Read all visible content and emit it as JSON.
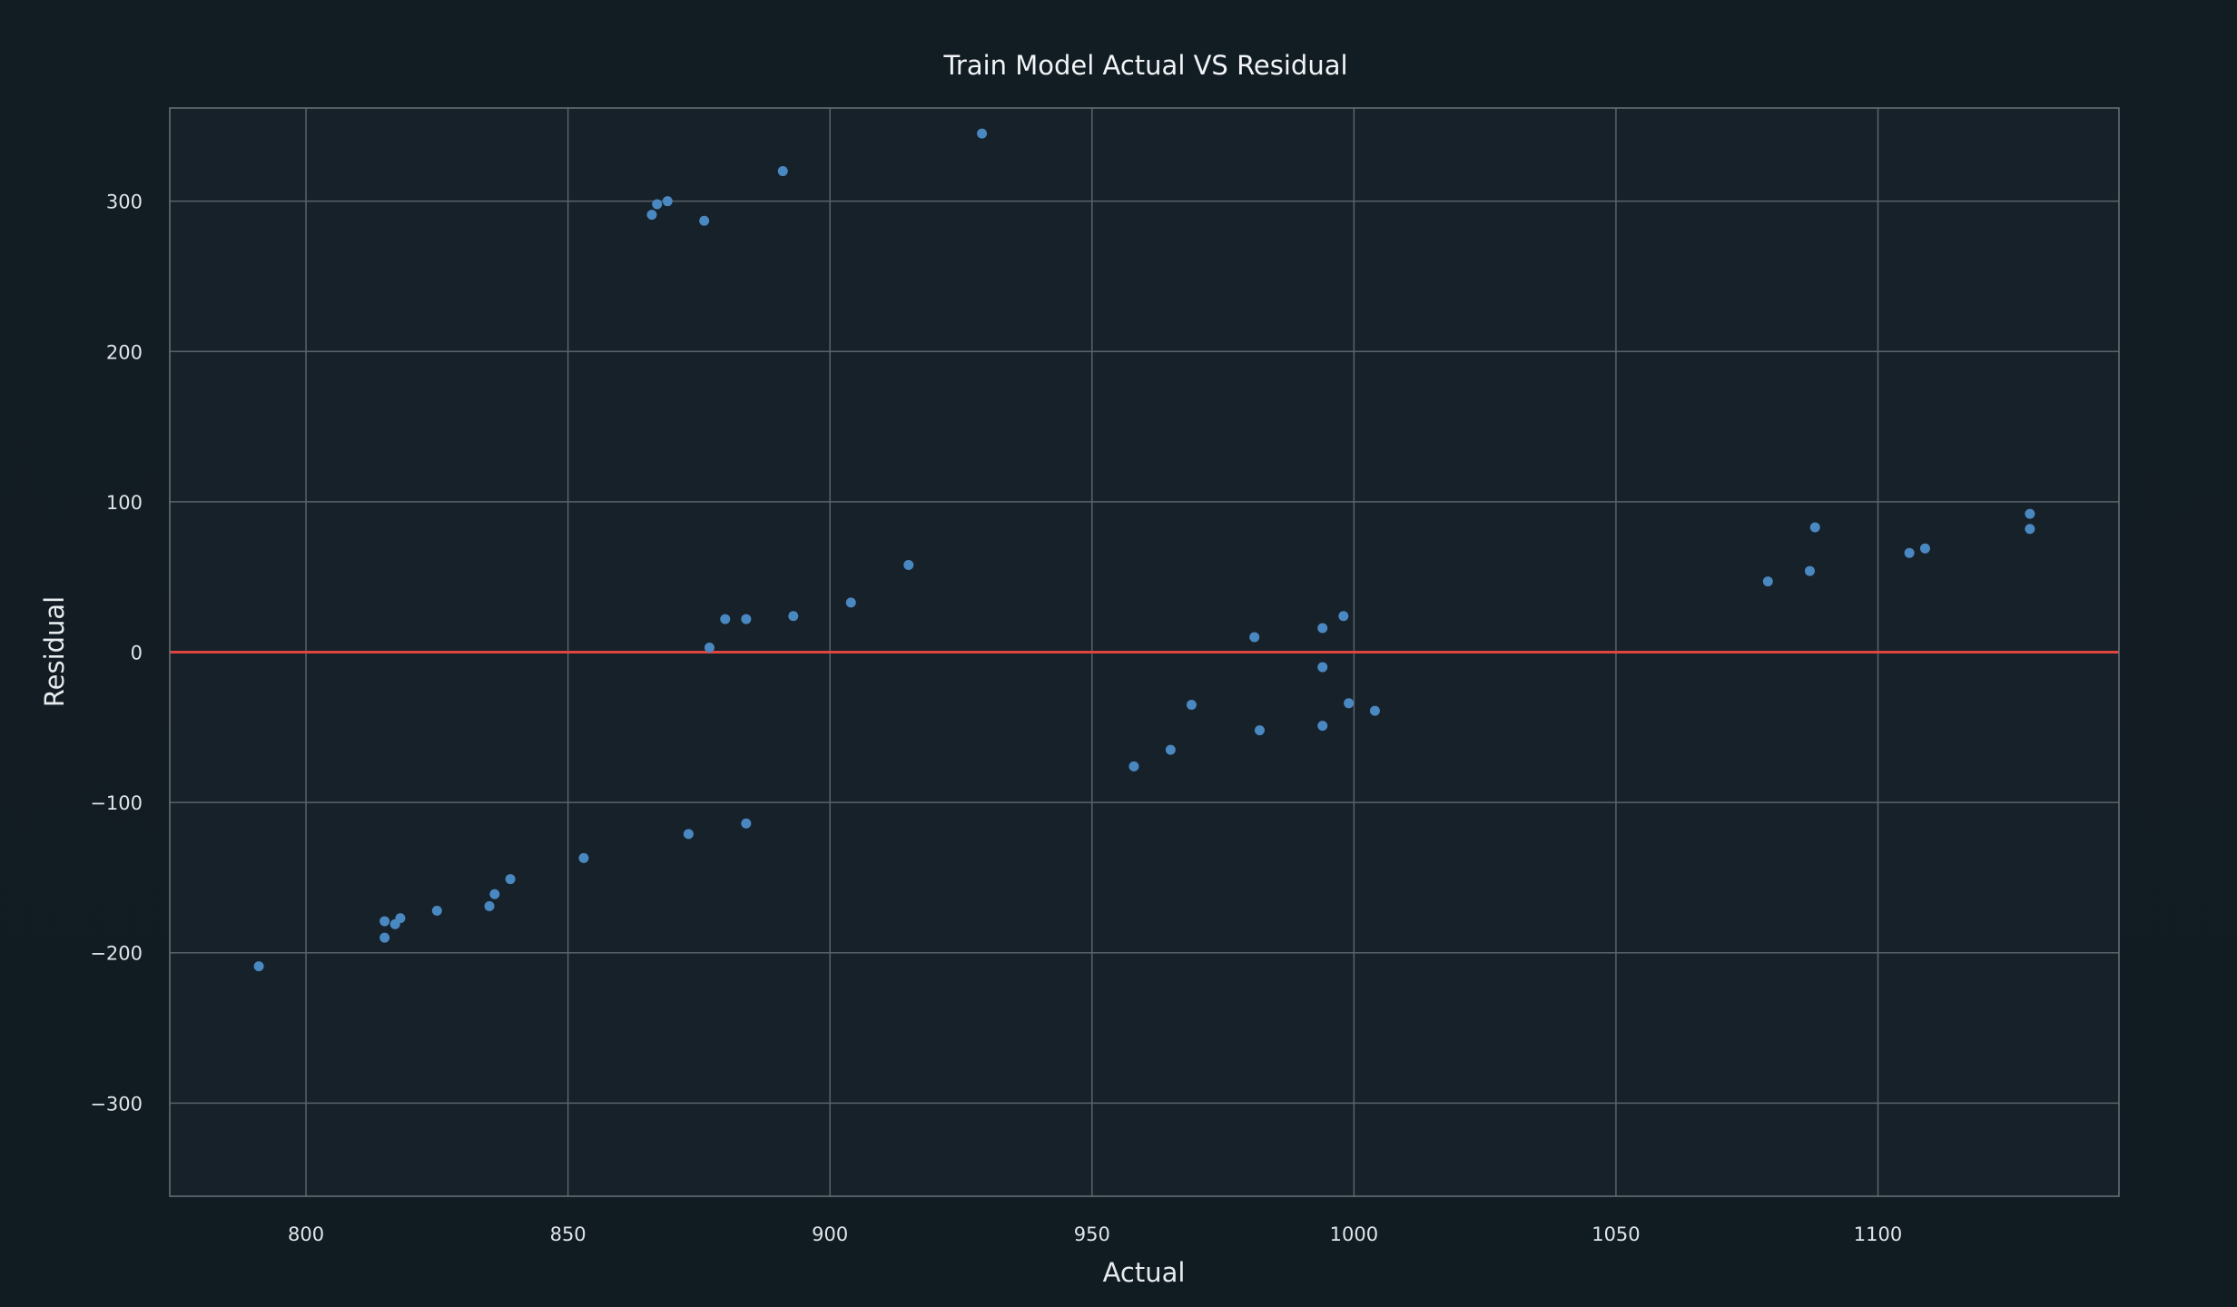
{
  "chart_data": {
    "type": "scatter",
    "title": "Train Model Actual VS Residual",
    "xlabel": "Actual",
    "ylabel": "Residual",
    "xlim": [
      774,
      1146
    ],
    "ylim": [
      -362,
      362
    ],
    "xticks": [
      800,
      850,
      900,
      950,
      1000,
      1050,
      1100
    ],
    "yticks": [
      -300,
      -200,
      -100,
      0,
      100,
      200,
      300
    ],
    "xtick_labels": [
      "800",
      "850",
      "900",
      "950",
      "1000",
      "1050",
      "1100"
    ],
    "ytick_labels": [
      "−300",
      "−200",
      "−100",
      "0",
      "100",
      "200",
      "300"
    ],
    "grid": true,
    "reference_line": {
      "y": 0,
      "color": "#e0443e"
    },
    "point_color": "#4a88c2",
    "background_color": "#111c24",
    "plot_background_color": "#17212a",
    "points": [
      {
        "x": 791,
        "y": -209
      },
      {
        "x": 815,
        "y": -179
      },
      {
        "x": 815,
        "y": -190
      },
      {
        "x": 817,
        "y": -181
      },
      {
        "x": 818,
        "y": -177
      },
      {
        "x": 825,
        "y": -172
      },
      {
        "x": 835,
        "y": -169
      },
      {
        "x": 836,
        "y": -161
      },
      {
        "x": 839,
        "y": -151
      },
      {
        "x": 853,
        "y": -137
      },
      {
        "x": 866,
        "y": 291
      },
      {
        "x": 867,
        "y": 298
      },
      {
        "x": 869,
        "y": 300
      },
      {
        "x": 873,
        "y": -121
      },
      {
        "x": 876,
        "y": 287
      },
      {
        "x": 877,
        "y": 3
      },
      {
        "x": 880,
        "y": 22
      },
      {
        "x": 884,
        "y": 22
      },
      {
        "x": 884,
        "y": -114
      },
      {
        "x": 891,
        "y": 320
      },
      {
        "x": 893,
        "y": 24
      },
      {
        "x": 904,
        "y": 33
      },
      {
        "x": 915,
        "y": 58
      },
      {
        "x": 929,
        "y": 345
      },
      {
        "x": 958,
        "y": -76
      },
      {
        "x": 965,
        "y": -65
      },
      {
        "x": 969,
        "y": -35
      },
      {
        "x": 981,
        "y": 10
      },
      {
        "x": 982,
        "y": -52
      },
      {
        "x": 994,
        "y": 16
      },
      {
        "x": 994,
        "y": -10
      },
      {
        "x": 994,
        "y": -49
      },
      {
        "x": 998,
        "y": 24
      },
      {
        "x": 999,
        "y": -34
      },
      {
        "x": 1004,
        "y": -39
      },
      {
        "x": 1079,
        "y": 47
      },
      {
        "x": 1087,
        "y": 54
      },
      {
        "x": 1088,
        "y": 83
      },
      {
        "x": 1106,
        "y": 66
      },
      {
        "x": 1109,
        "y": 69
      },
      {
        "x": 1129,
        "y": 92
      },
      {
        "x": 1129,
        "y": 82
      }
    ]
  }
}
